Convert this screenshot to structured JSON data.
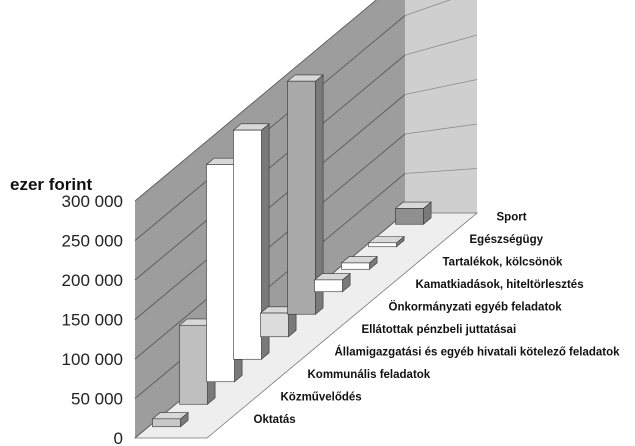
{
  "chart_data": {
    "type": "bar",
    "title": "",
    "ylabel": "ezer forint",
    "ylim": [
      0,
      300000
    ],
    "yticks": [
      "0",
      "50 000",
      "100 000",
      "150 000",
      "200 000",
      "250 000",
      "300 000"
    ],
    "categories": [
      "Oktatás",
      "Közművelődés",
      "Kommunális feladatok",
      "Államigazgatási és egyéb hivatali kötelező feladatok",
      "Ellátottak pénzbeli juttatásai",
      "Önkormányzati egyéb feladatok",
      "Kamatkiadások, hiteltörlesztés",
      "Tartalékok, kölcsönök",
      "Egészségügy",
      "Sport"
    ],
    "values": [
      10000,
      100000,
      275000,
      290000,
      30000,
      295000,
      15000,
      8000,
      5000,
      20000
    ],
    "colors": {
      "wall_back": "#9d9d9d",
      "wall_side": "#cfcfcf",
      "floor": "#eeeeee",
      "grid": "#5a5a5a"
    },
    "bar_colors": [
      "#c8c8c8",
      "#bfbfbf",
      "#ffffff",
      "#ffffff",
      "#dcdcdc",
      "#a9a9a9",
      "#ffffff",
      "#ffffff",
      "#ffffff",
      "#8f8f8f"
    ]
  }
}
